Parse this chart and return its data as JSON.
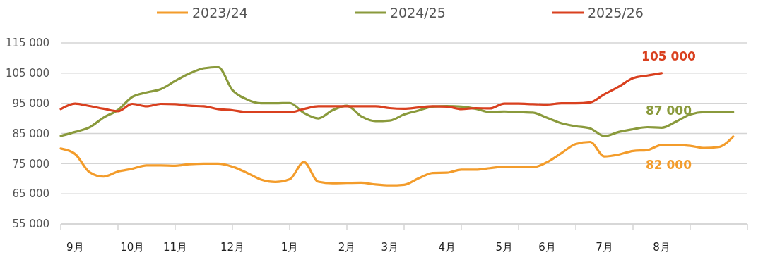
{
  "chart_data": {
    "type": "line",
    "categories": [
      null,
      "9月",
      null,
      null,
      null,
      "10月",
      null,
      null,
      "11月",
      null,
      null,
      null,
      "12月",
      null,
      null,
      null,
      "1月",
      null,
      null,
      null,
      "2月",
      null,
      null,
      "3月",
      null,
      null,
      null,
      "4月",
      null,
      null,
      null,
      "5月",
      null,
      null,
      "6月",
      null,
      null,
      null,
      "7月",
      null,
      null,
      null,
      "8月",
      null,
      null,
      null,
      null,
      null
    ],
    "ylim": [
      55000,
      115000
    ],
    "yticks": [
      {
        "value": 55000,
        "label": "55 000"
      },
      {
        "value": 65000,
        "label": "65 000"
      },
      {
        "value": 75000,
        "label": "75 000"
      },
      {
        "value": 85000,
        "label": "85 000"
      },
      {
        "value": 95000,
        "label": "95 000"
      },
      {
        "value": 105000,
        "label": "105 000"
      },
      {
        "value": 115000,
        "label": "115 000"
      }
    ],
    "grid": "y",
    "legend": "top",
    "marker": "none",
    "line_style": "solid",
    "series": [
      {
        "name": "2023/24",
        "color": "#f39c2b",
        "values": [
          80000,
          78200,
          72200,
          70700,
          72400,
          73300,
          74400,
          74400,
          74300,
          74800,
          75000,
          75000,
          74000,
          72000,
          69700,
          68900,
          69800,
          75500,
          69000,
          68500,
          68600,
          68700,
          68100,
          67800,
          68000,
          70100,
          71900,
          72000,
          73000,
          73000,
          73500,
          74000,
          74000,
          73800,
          75500,
          78500,
          81500,
          82200,
          77400,
          78000,
          79200,
          79500,
          81200,
          81200,
          80900,
          80200,
          80500,
          84000
        ]
      },
      {
        "name": "2024/25",
        "color": "#8a9a3c",
        "values": [
          84200,
          85500,
          87000,
          90300,
          92800,
          97100,
          98600,
          99700,
          102400,
          104900,
          106600,
          107000,
          99400,
          96300,
          95000,
          95000,
          95100,
          91800,
          90000,
          92700,
          94200,
          90700,
          89100,
          89300,
          91300,
          92600,
          93900,
          94100,
          93900,
          93200,
          92100,
          92300,
          92100,
          91900,
          90200,
          88400,
          87400,
          86700,
          84100,
          85500,
          86400,
          87100,
          86900,
          88900,
          91300,
          92100,
          92100,
          92100
        ]
      },
      {
        "name": "2025/26",
        "color": "#d9401f",
        "values": [
          93100,
          94900,
          94100,
          93200,
          92400,
          94800,
          94000,
          94800,
          94700,
          94200,
          94000,
          93100,
          92700,
          92100,
          92100,
          92100,
          92000,
          93100,
          94000,
          94000,
          94000,
          94000,
          94000,
          93400,
          93200,
          93600,
          94000,
          93900,
          93100,
          93400,
          93300,
          94900,
          94900,
          94700,
          94600,
          95000,
          95000,
          95300,
          98000,
          100500,
          103300,
          104200,
          105000,
          null,
          null,
          null,
          null,
          null
        ]
      }
    ],
    "annotations": [
      "82 000",
      "87 000",
      "105 000"
    ]
  }
}
